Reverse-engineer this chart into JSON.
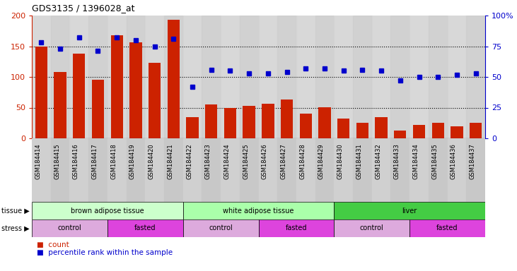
{
  "title": "GDS3135 / 1396028_at",
  "samples": [
    "GSM184414",
    "GSM184415",
    "GSM184416",
    "GSM184417",
    "GSM184418",
    "GSM184419",
    "GSM184420",
    "GSM184421",
    "GSM184422",
    "GSM184423",
    "GSM184424",
    "GSM184425",
    "GSM184426",
    "GSM184427",
    "GSM184428",
    "GSM184429",
    "GSM184430",
    "GSM184431",
    "GSM184432",
    "GSM184433",
    "GSM184434",
    "GSM184435",
    "GSM184436",
    "GSM184437"
  ],
  "counts": [
    150,
    108,
    138,
    95,
    168,
    156,
    123,
    193,
    35,
    55,
    50,
    53,
    56,
    63,
    40,
    51,
    32,
    25,
    35,
    13,
    22,
    25,
    20,
    25
  ],
  "percentile": [
    78,
    73,
    82,
    71,
    82,
    80,
    75,
    81,
    42,
    56,
    55,
    53,
    53,
    54,
    57,
    57,
    55,
    56,
    55,
    47,
    50,
    50,
    52,
    53
  ],
  "bar_color": "#cc2200",
  "dot_color": "#0000cc",
  "plot_bg_color": "#d8d8d8",
  "fig_bg_color": "#ffffff",
  "ylim_left": [
    0,
    200
  ],
  "ylim_right": [
    0,
    100
  ],
  "yticks_left": [
    0,
    50,
    100,
    150,
    200
  ],
  "yticks_right": [
    0,
    25,
    50,
    75,
    100
  ],
  "ytick_labels_right": [
    "0",
    "25",
    "50",
    "75",
    "100%"
  ],
  "tissue_groups": [
    {
      "label": "brown adipose tissue",
      "start": 0,
      "end": 7,
      "color": "#ccffcc"
    },
    {
      "label": "white adipose tissue",
      "start": 8,
      "end": 15,
      "color": "#aaffaa"
    },
    {
      "label": "liver",
      "start": 16,
      "end": 23,
      "color": "#44cc44"
    }
  ],
  "stress_groups": [
    {
      "label": "control",
      "start": 0,
      "end": 3,
      "color": "#ddaadd"
    },
    {
      "label": "fasted",
      "start": 4,
      "end": 7,
      "color": "#dd44dd"
    },
    {
      "label": "control",
      "start": 8,
      "end": 11,
      "color": "#ddaadd"
    },
    {
      "label": "fasted",
      "start": 12,
      "end": 15,
      "color": "#dd44dd"
    },
    {
      "label": "control",
      "start": 16,
      "end": 19,
      "color": "#ddaadd"
    },
    {
      "label": "fasted",
      "start": 20,
      "end": 23,
      "color": "#dd44dd"
    }
  ]
}
